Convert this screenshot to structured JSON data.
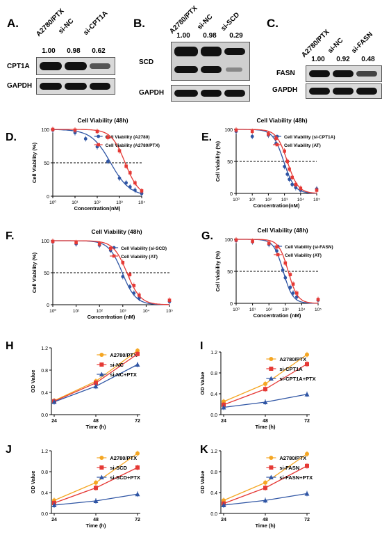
{
  "blots": [
    {
      "label": "A.",
      "lanes": [
        "A2780/PTX",
        "si-NC",
        "si-CPT1A"
      ],
      "values": [
        "1.00",
        "0.98",
        "0.62"
      ],
      "rows": [
        "CPT1A",
        "GAPDH"
      ]
    },
    {
      "label": "B.",
      "lanes": [
        "A2780/PTX",
        "si-NC",
        "si-SCD"
      ],
      "values": [
        "1.00",
        "0.98",
        "0.29"
      ],
      "rows": [
        "SCD",
        "GAPDH"
      ]
    },
    {
      "label": "C.",
      "lanes": [
        "A2780/PTX",
        "si-NC",
        "si-FASN"
      ],
      "values": [
        "1.00",
        "0.92",
        "0.48"
      ],
      "rows": [
        "FASN",
        "GAPDH"
      ]
    }
  ],
  "chart_data": [
    {
      "panel": "D.",
      "type": "scatter",
      "title": "Cell Viability (48h)",
      "xlabel": "Concentration(nM)",
      "ylabel": "Cell Viability (%)",
      "x_scale": "log",
      "xlim": [
        1,
        10000
      ],
      "ylim": [
        0,
        100
      ],
      "x_ticks": [
        "10⁰",
        "10¹",
        "10²",
        "10³",
        "10⁴"
      ],
      "y_ticks": [
        "0",
        "50",
        "100"
      ],
      "reference_y": 50,
      "legend_position": "top-right",
      "series": [
        {
          "name": "Cell Viability (A2780)",
          "color": "#2f55a4",
          "x": [
            1,
            10,
            30,
            100,
            300,
            1000,
            2000,
            3000,
            5000,
            10000
          ],
          "y": [
            99,
            95,
            86,
            74,
            52,
            27,
            20,
            14,
            9,
            4
          ],
          "ic50": 400,
          "hill": 1.0
        },
        {
          "name": "Cell Viability (A2780/PTX)",
          "color": "#e53935",
          "x": [
            1,
            10,
            100,
            300,
            1000,
            2000,
            3000,
            5000,
            10000
          ],
          "y": [
            100,
            99,
            97,
            88,
            68,
            45,
            35,
            20,
            8
          ],
          "ic50": 1800,
          "hill": 1.4
        }
      ]
    },
    {
      "panel": "E.",
      "type": "scatter",
      "title": "Cell Viability (48h)",
      "xlabel": "Concentration(nM)",
      "ylabel": "Cell Viability (%)",
      "x_scale": "log",
      "xlim": [
        1,
        100000
      ],
      "ylim": [
        0,
        100
      ],
      "x_ticks": [
        "10⁰",
        "10¹",
        "10²",
        "10³",
        "10⁴",
        "10⁵"
      ],
      "y_ticks": [
        "0",
        "50",
        "100"
      ],
      "reference_y": 50,
      "legend_position": "top-right",
      "series": [
        {
          "name": "Cell Viability (si-CPT1A)",
          "color": "#2f55a4",
          "x": [
            1,
            10,
            100,
            300,
            1000,
            1500,
            2000,
            3000,
            5000,
            10000,
            100000
          ],
          "y": [
            97,
            89,
            91,
            78,
            42,
            30,
            22,
            14,
            9,
            5,
            7
          ],
          "ic50": 900,
          "hill": 1.3
        },
        {
          "name": "Cell Viability (AT)",
          "color": "#e53935",
          "x": [
            1,
            10,
            100,
            300,
            1000,
            1500,
            2000,
            3000,
            5000,
            10000,
            100000
          ],
          "y": [
            99,
            97,
            93,
            86,
            66,
            50,
            38,
            25,
            14,
            8,
            5
          ],
          "ic50": 1500,
          "hill": 1.3
        }
      ]
    },
    {
      "panel": "F.",
      "type": "scatter",
      "title": "Cell Viability (48h)",
      "xlabel": "Concentration (nM)",
      "ylabel": "Cell Viability (%)",
      "x_scale": "log",
      "xlim": [
        1,
        100000
      ],
      "ylim": [
        0,
        100
      ],
      "x_ticks": [
        "10⁰",
        "10¹",
        "10²",
        "10³",
        "10⁴",
        "10⁵"
      ],
      "y_ticks": [
        "0",
        "50",
        "100"
      ],
      "reference_y": 50,
      "legend_position": "top-right",
      "series": [
        {
          "name": "Cell Viability (si-SCD)",
          "color": "#2f55a4",
          "x": [
            1,
            10,
            100,
            300,
            1000,
            2000,
            3000,
            5000,
            100000
          ],
          "y": [
            98,
            95,
            93,
            85,
            44,
            28,
            18,
            10,
            5
          ],
          "ic50": 950,
          "hill": 1.5
        },
        {
          "name": "Cell Viability (AT)",
          "color": "#e53935",
          "x": [
            1,
            10,
            100,
            300,
            1000,
            2000,
            3000,
            5000,
            100000
          ],
          "y": [
            99,
            97,
            95,
            88,
            66,
            47,
            30,
            15,
            7
          ],
          "ic50": 1500,
          "hill": 1.5
        }
      ]
    },
    {
      "panel": "G.",
      "type": "scatter",
      "title": "Cell Viability (48h)",
      "xlabel": "Concentration (nM)",
      "ylabel": "Cell Viability (%)",
      "x_scale": "log",
      "xlim": [
        1,
        100000
      ],
      "ylim": [
        0,
        100
      ],
      "x_ticks": [
        "10⁰",
        "10¹",
        "10²",
        "10³",
        "10⁴",
        "10⁵"
      ],
      "y_ticks": [
        "0",
        "50",
        "100"
      ],
      "reference_y": 50,
      "legend_position": "top-right",
      "series": [
        {
          "name": "Cell Viability (si-FASN)",
          "color": "#2f55a4",
          "x": [
            1,
            10,
            100,
            300,
            700,
            1000,
            2000,
            3000,
            5000,
            100000
          ],
          "y": [
            98,
            96,
            92,
            82,
            52,
            40,
            25,
            16,
            10,
            5
          ],
          "ic50": 750,
          "hill": 1.5
        },
        {
          "name": "Cell Viability (AT)",
          "color": "#e53935",
          "x": [
            1,
            10,
            100,
            300,
            1000,
            2000,
            3000,
            5000,
            100000
          ],
          "y": [
            99,
            97,
            94,
            88,
            63,
            45,
            30,
            16,
            6
          ],
          "ic50": 1500,
          "hill": 1.5
        }
      ]
    },
    {
      "panel": "H",
      "type": "line",
      "xlabel": "Time (h)",
      "ylabel": "OD Value",
      "categories": [
        "24",
        "48",
        "72"
      ],
      "ylim": [
        0.0,
        1.2
      ],
      "y_ticks": [
        "0.0",
        "0.4",
        "0.8",
        "1.2"
      ],
      "legend_position": "top-right",
      "series": [
        {
          "name": "A2780/PTX",
          "color": "#f5a623",
          "marker": "circle",
          "values": [
            0.25,
            0.6,
            1.15
          ]
        },
        {
          "name": "si-NC",
          "color": "#e53935",
          "marker": "square",
          "values": [
            0.24,
            0.57,
            1.09
          ]
        },
        {
          "name": "si-NC+PTX",
          "color": "#2f55a4",
          "marker": "triangle",
          "values": [
            0.23,
            0.51,
            0.9
          ]
        }
      ]
    },
    {
      "panel": "I",
      "type": "line",
      "xlabel": "Time (h)",
      "ylabel": "OD Value",
      "categories": [
        "24",
        "48",
        "72"
      ],
      "ylim": [
        0.0,
        1.2
      ],
      "y_ticks": [
        "0.0",
        "0.4",
        "0.8",
        "1.2"
      ],
      "legend_position": "top-right",
      "series": [
        {
          "name": "A2780/PTX",
          "color": "#f5a623",
          "marker": "circle",
          "values": [
            0.25,
            0.59,
            1.15
          ]
        },
        {
          "name": "si-CPT1A",
          "color": "#e53935",
          "marker": "square",
          "values": [
            0.19,
            0.49,
            0.97
          ]
        },
        {
          "name": "si-CPT1A+PTX",
          "color": "#2f55a4",
          "marker": "triangle",
          "values": [
            0.14,
            0.24,
            0.39
          ]
        }
      ]
    },
    {
      "panel": "J",
      "type": "line",
      "xlabel": "Time (h)",
      "ylabel": "OD Value",
      "categories": [
        "24",
        "48",
        "72"
      ],
      "ylim": [
        0.0,
        1.2
      ],
      "y_ticks": [
        "0.0",
        "0.4",
        "0.8",
        "1.2"
      ],
      "legend_position": "top-right",
      "series": [
        {
          "name": "A2780/PTX",
          "color": "#f5a623",
          "marker": "circle",
          "values": [
            0.25,
            0.59,
            1.15
          ]
        },
        {
          "name": "si-SCD",
          "color": "#e53935",
          "marker": "square",
          "values": [
            0.2,
            0.49,
            0.88
          ]
        },
        {
          "name": "si-SCD+PTX",
          "color": "#2f55a4",
          "marker": "triangle",
          "values": [
            0.16,
            0.24,
            0.37
          ]
        }
      ]
    },
    {
      "panel": "K",
      "type": "line",
      "xlabel": "Time (h)",
      "ylabel": "OD Value",
      "categories": [
        "24",
        "48",
        "72"
      ],
      "ylim": [
        0.0,
        1.2
      ],
      "y_ticks": [
        "0.0",
        "0.4",
        "0.8",
        "1.2"
      ],
      "legend_position": "top-right",
      "series": [
        {
          "name": "A2780/PTX",
          "color": "#f5a623",
          "marker": "circle",
          "values": [
            0.25,
            0.59,
            1.14
          ]
        },
        {
          "name": "si-FASN",
          "color": "#e53935",
          "marker": "square",
          "values": [
            0.19,
            0.49,
            0.91
          ]
        },
        {
          "name": "si-FASN+PTX",
          "color": "#2f55a4",
          "marker": "triangle",
          "values": [
            0.16,
            0.25,
            0.38
          ]
        }
      ]
    }
  ]
}
